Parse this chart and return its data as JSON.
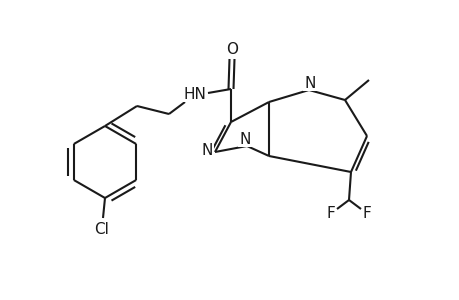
{
  "bg_color": "#ffffff",
  "line_color": "#1a1a1a",
  "line_width": 1.5,
  "font_size": 10.5,
  "figsize": [
    4.6,
    3.0
  ],
  "dpi": 100,
  "xlim": [
    0,
    4.6
  ],
  "ylim": [
    0,
    3.0
  ]
}
